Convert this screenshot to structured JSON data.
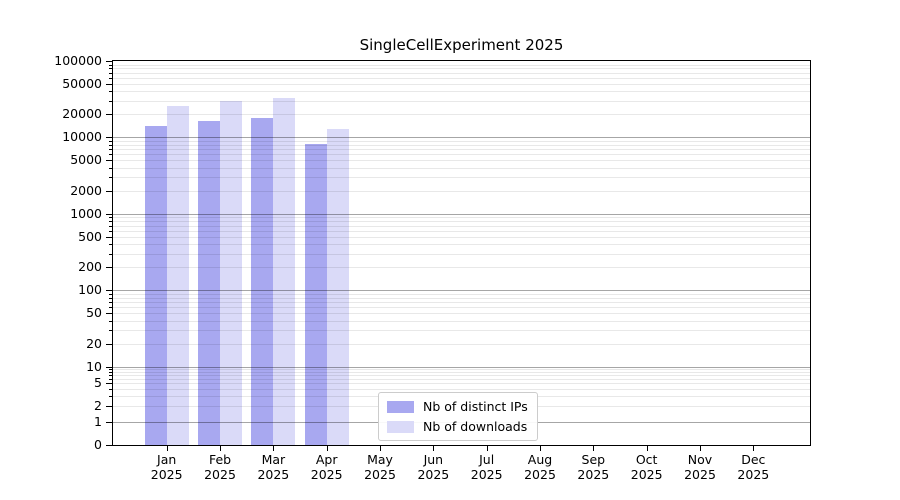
{
  "chart_data": {
    "type": "bar",
    "title": "SingleCellExperiment 2025",
    "categories": [
      "Jan",
      "Feb",
      "Mar",
      "Apr",
      "May",
      "Jun",
      "Jul",
      "Aug",
      "Sep",
      "Oct",
      "Nov",
      "Dec"
    ],
    "year": "2025",
    "series": [
      {
        "name": "Nb of distinct IPs",
        "values": [
          14300,
          16300,
          17800,
          8200,
          null,
          null,
          null,
          null,
          null,
          null,
          null,
          null
        ]
      },
      {
        "name": "Nb of downloads",
        "values": [
          26000,
          29700,
          33000,
          12900,
          null,
          null,
          null,
          null,
          null,
          null,
          null,
          null
        ]
      }
    ],
    "yticks": [
      0,
      1,
      2,
      5,
      10,
      20,
      50,
      100,
      200,
      500,
      1000,
      2000,
      5000,
      10000,
      20000,
      50000,
      100000
    ],
    "ylim": [
      0,
      100000
    ],
    "yscale": "log-like (0 baseline, log decades above)",
    "xlabel": "",
    "ylabel": "",
    "grid": true,
    "legend_position": "lower center"
  },
  "colors": {
    "bar_ips": "#a8a8f0",
    "bar_downloads": "#dadaf8",
    "grid_major": "rgba(0,0,0,0.35)",
    "grid_minor": "rgba(0,0,0,0.09)",
    "spine": "#000000",
    "legend_border": "#cccccc",
    "text": "#000000"
  }
}
